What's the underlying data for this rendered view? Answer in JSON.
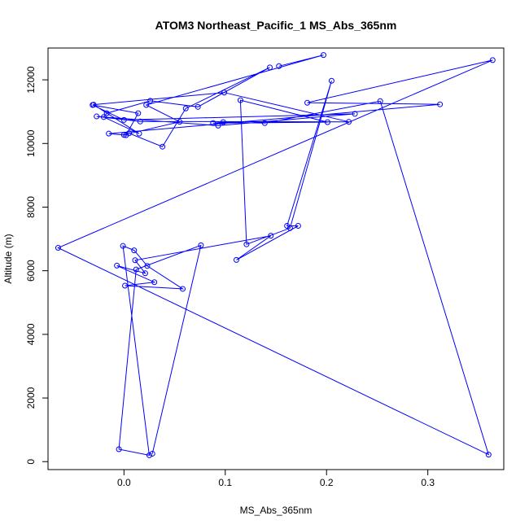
{
  "chart_data": {
    "type": "line",
    "title": "ATOM3 Northeast_Pacific_1 MS_Abs_365nm",
    "xlabel": "MS_Abs_365nm",
    "ylabel": "Altitude (m)",
    "xlim": [
      -0.075,
      0.375
    ],
    "ylim": [
      -250,
      13000
    ],
    "x_ticks": [
      0.0,
      0.1,
      0.2,
      0.3
    ],
    "x_tick_labels": [
      "0.0",
      "0.1",
      "0.2",
      "0.3"
    ],
    "y_ticks": [
      0,
      2000,
      4000,
      6000,
      8000,
      10000,
      12000
    ],
    "y_tick_labels": [
      "0",
      "2000",
      "4000",
      "6000",
      "8000",
      "10000",
      "12000"
    ],
    "grid": false,
    "legend": "none",
    "series_color": "#0000ff",
    "marker": "open-circle",
    "x": [
      0.153,
      0.197,
      0.022,
      0.055,
      0.0,
      0.005,
      0.038,
      0.061,
      0.144,
      0.073,
      0.026,
      -0.017,
      -0.02,
      0.015,
      -0.03,
      0.099,
      0.222,
      0.016,
      -0.027,
      0.093,
      0.228,
      0.0,
      -0.031,
      0.014,
      0.002,
      -0.015,
      0.312,
      0.181,
      0.364,
      -0.065,
      0.36,
      0.253,
      0.139,
      0.098,
      0.088,
      0.201,
      0.115,
      0.121,
      0.164,
      0.205,
      0.161,
      0.172,
      0.111,
      0.145,
      0.011,
      0.021,
      -0.007,
      0.03,
      0.001,
      0.058,
      0.023,
      0.01,
      -0.001,
      0.025,
      -0.005,
      0.012,
      0.076,
      0.028
    ],
    "y": [
      12430,
      12780,
      11210,
      10680,
      10270,
      10320,
      9900,
      11100,
      12390,
      11150,
      11340,
      10950,
      10830,
      10310,
      11220,
      11600,
      10680,
      10690,
      10850,
      10560,
      10930,
      10740,
      11210,
      10950,
      10260,
      10310,
      11230,
      11280,
      12620,
      6720,
      220,
      11330,
      10640,
      10670,
      10640,
      10670,
      11360,
      6830,
      7340,
      11970,
      7410,
      7410,
      6340,
      7100,
      6330,
      5920,
      6160,
      5640,
      5530,
      5430,
      6150,
      6640,
      6780,
      200,
      390,
      6040,
      6800,
      250
    ]
  }
}
